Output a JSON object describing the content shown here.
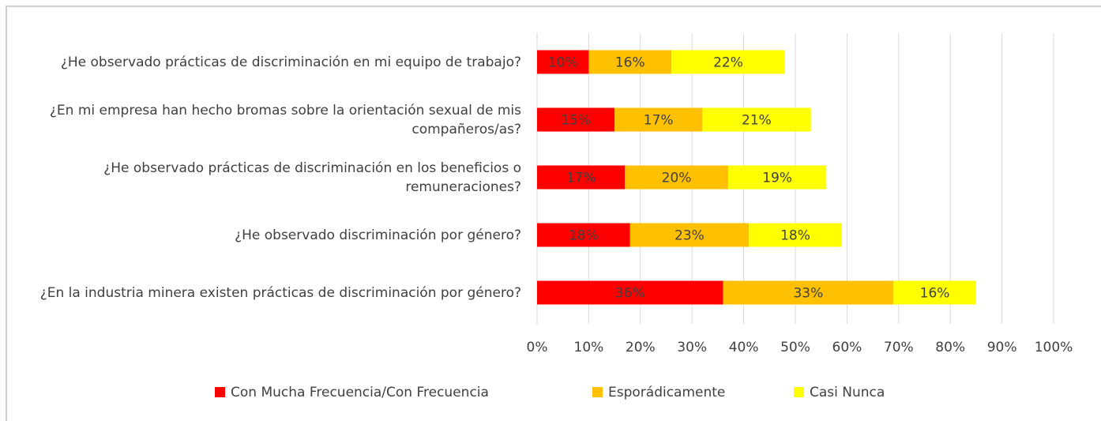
{
  "chart_data": {
    "type": "stacked_barh",
    "categories": [
      "¿He observado prácticas de discriminación en mi equipo de trabajo?",
      "¿En mi empresa han hecho bromas sobre la orientación sexual de mis compañeros/as?",
      "¿He observado prácticas de discriminación en los beneficios o remuneraciones?",
      "¿He observado discriminación por género?",
      "¿En la industria minera existen prácticas de discriminación por género?"
    ],
    "series": [
      {
        "name": "Con Mucha Frecuencia/Con Frecuencia",
        "color": "#ff0000",
        "values": [
          10,
          15,
          17,
          18,
          36
        ],
        "value_labels": [
          "10%",
          "15%",
          "17%",
          "18%",
          "36%"
        ]
      },
      {
        "name": "Esporádicamente",
        "color": "#ffc000",
        "values": [
          16,
          17,
          20,
          23,
          33
        ],
        "value_labels": [
          "16%",
          "17%",
          "20%",
          "23%",
          "33%"
        ]
      },
      {
        "name": "Casi Nunca",
        "color": "#ffff00",
        "values": [
          22,
          21,
          19,
          18,
          16
        ],
        "value_labels": [
          "22%",
          "21%",
          "19%",
          "18%",
          "16%"
        ]
      }
    ],
    "xlim": [
      0,
      100
    ],
    "xticks": [
      {
        "value": 0,
        "label": "0%"
      },
      {
        "value": 10,
        "label": "10%"
      },
      {
        "value": 20,
        "label": "20%"
      },
      {
        "value": 30,
        "label": "30%"
      },
      {
        "value": 40,
        "label": "40%"
      },
      {
        "value": 50,
        "label": "50%"
      },
      {
        "value": 60,
        "label": "60%"
      },
      {
        "value": 70,
        "label": "70%"
      },
      {
        "value": 80,
        "label": "80%"
      },
      {
        "value": 90,
        "label": "90%"
      },
      {
        "value": 100,
        "label": "100%"
      }
    ],
    "grid": true,
    "legend": "bottom"
  }
}
